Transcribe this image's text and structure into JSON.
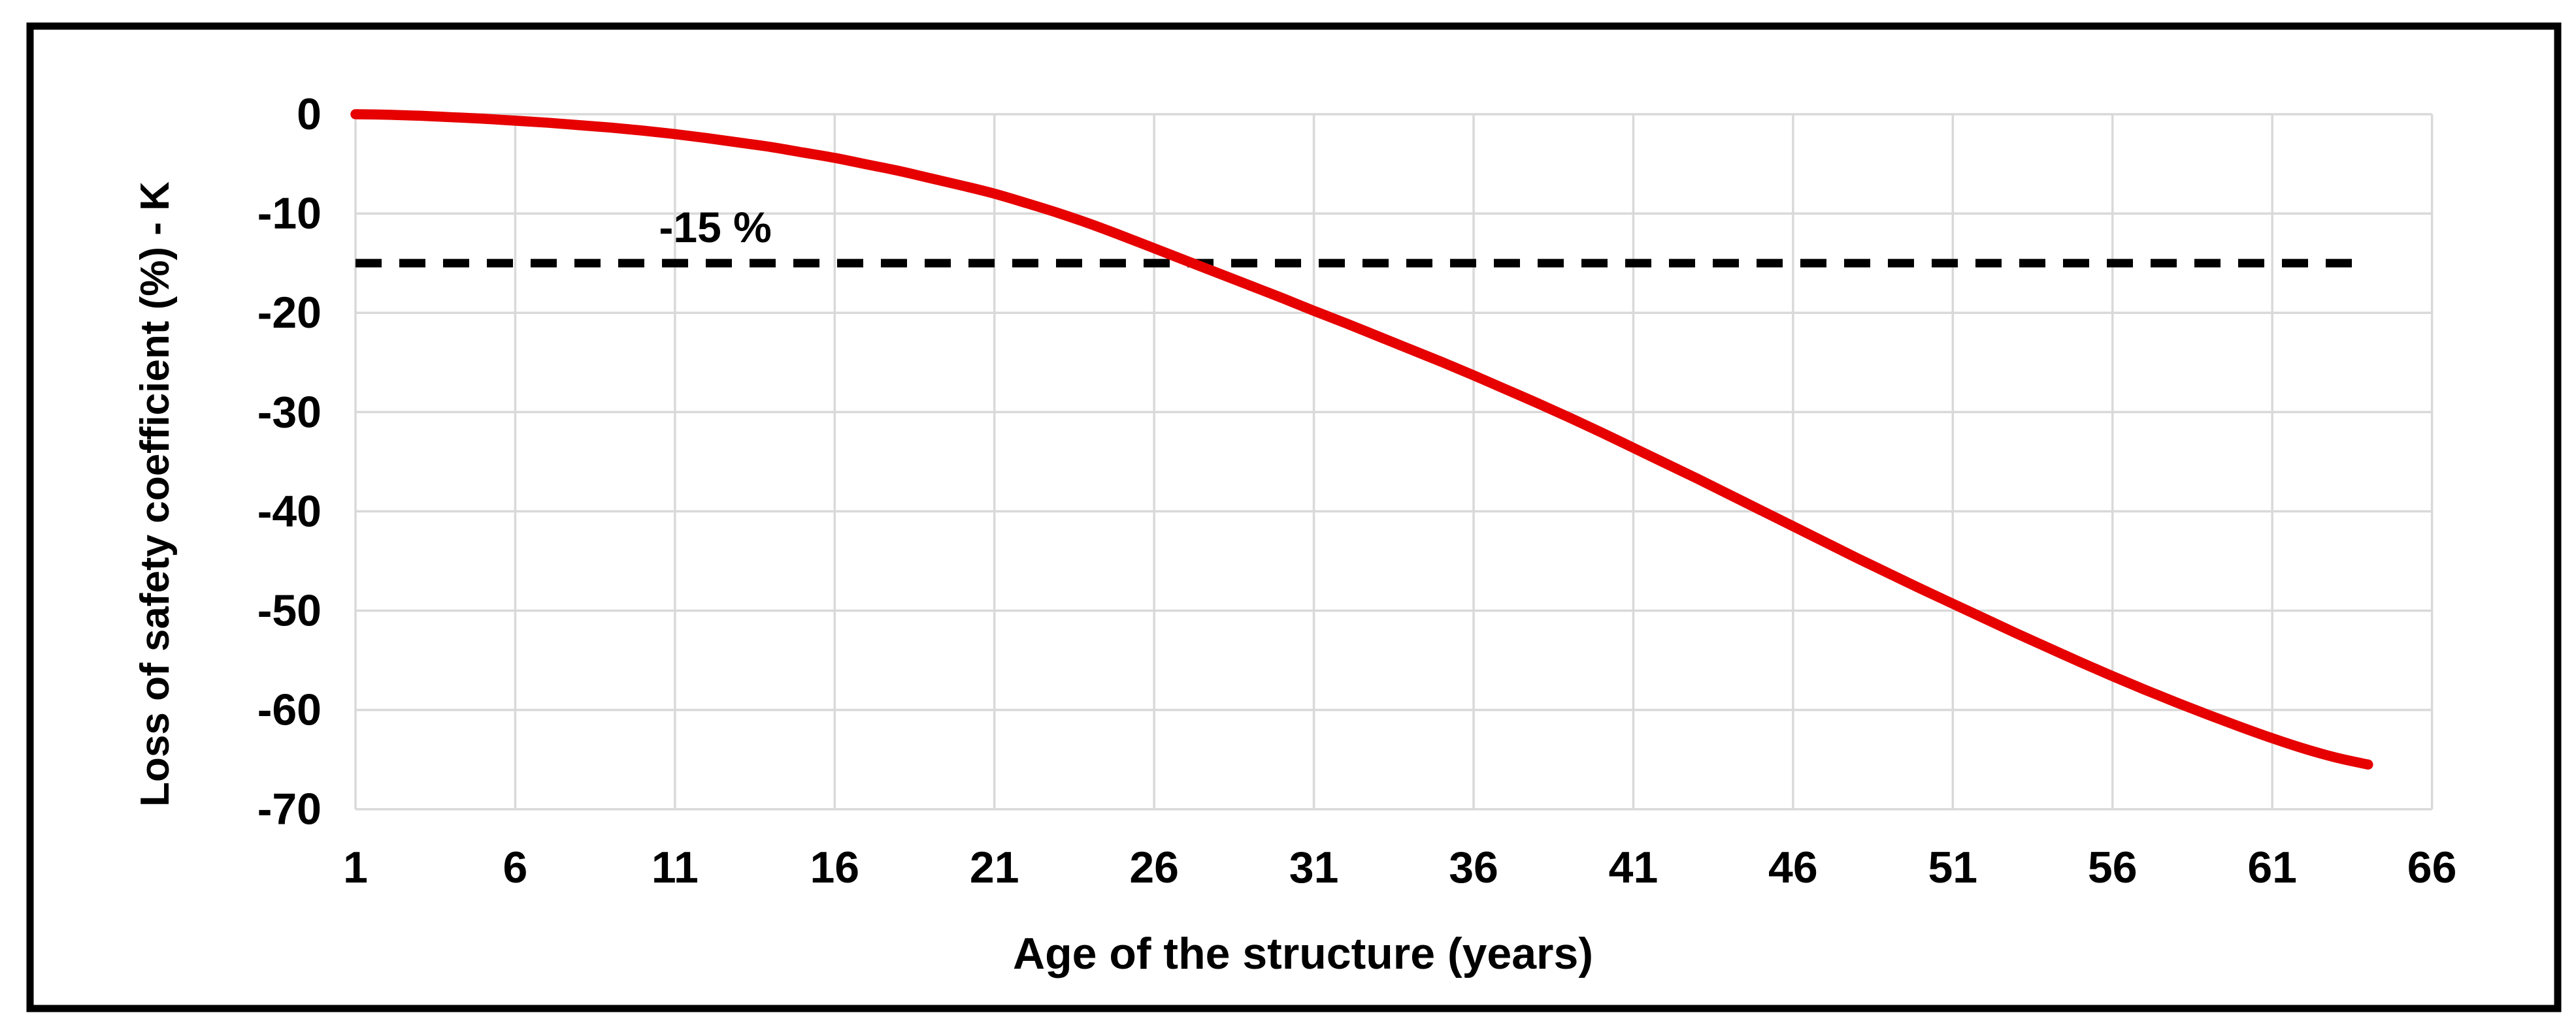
{
  "chart_data": {
    "type": "line",
    "title": "",
    "xlabel": "Age of the structure (years)",
    "ylabel": "Loss of safety coefficient (%) - K",
    "xlim": [
      1,
      66
    ],
    "ylim": [
      -70,
      0
    ],
    "x_ticks": [
      1,
      6,
      11,
      16,
      21,
      26,
      31,
      36,
      41,
      46,
      51,
      56,
      61,
      66
    ],
    "y_ticks": [
      0,
      -10,
      -20,
      -30,
      -40,
      -50,
      -60,
      -70
    ],
    "grid": true,
    "legend_position": "none",
    "annotation": {
      "text": "-15 %",
      "x": 10.5,
      "y": -12.9
    },
    "threshold": {
      "value": -15,
      "x_start": 1,
      "x_end": 64,
      "style": "dashed",
      "color": "#000000"
    },
    "series": [
      {
        "name": "Loss of safety coefficient (%) - K",
        "color": "#e60000",
        "style": "smooth",
        "x": [
          1,
          2,
          3,
          4,
          5,
          6,
          7,
          8,
          9,
          10,
          11,
          12,
          13,
          14,
          15,
          16,
          17,
          18,
          19,
          20,
          21,
          22,
          23,
          24,
          25,
          26,
          27,
          28,
          29,
          30,
          31,
          32,
          33,
          34,
          35,
          36,
          37,
          38,
          39,
          40,
          41,
          42,
          43,
          44,
          45,
          46,
          47,
          48,
          49,
          50,
          51,
          52,
          53,
          54,
          55,
          56,
          57,
          58,
          59,
          60,
          61,
          62,
          63,
          64
        ],
        "y": [
          0,
          -0.05,
          -0.15,
          -0.3,
          -0.45,
          -0.65,
          -0.85,
          -1.1,
          -1.35,
          -1.65,
          -2.0,
          -2.4,
          -2.85,
          -3.3,
          -3.85,
          -4.4,
          -5.05,
          -5.7,
          -6.45,
          -7.2,
          -8.0,
          -8.95,
          -9.95,
          -11.05,
          -12.25,
          -13.5,
          -14.75,
          -16.0,
          -17.25,
          -18.5,
          -19.8,
          -21.05,
          -22.35,
          -23.65,
          -24.95,
          -26.3,
          -27.7,
          -29.1,
          -30.55,
          -32.05,
          -33.6,
          -35.15,
          -36.7,
          -38.3,
          -39.9,
          -41.5,
          -43.1,
          -44.7,
          -46.25,
          -47.8,
          -49.3,
          -50.8,
          -52.3,
          -53.75,
          -55.2,
          -56.6,
          -57.95,
          -59.25,
          -60.5,
          -61.7,
          -62.85,
          -63.9,
          -64.8,
          -65.5
        ]
      }
    ],
    "colors": {
      "curve": "#e60000",
      "gridline": "#d9d9d9",
      "threshold": "#000000",
      "text": "#000000",
      "border": "#000000",
      "background": "#ffffff"
    }
  }
}
